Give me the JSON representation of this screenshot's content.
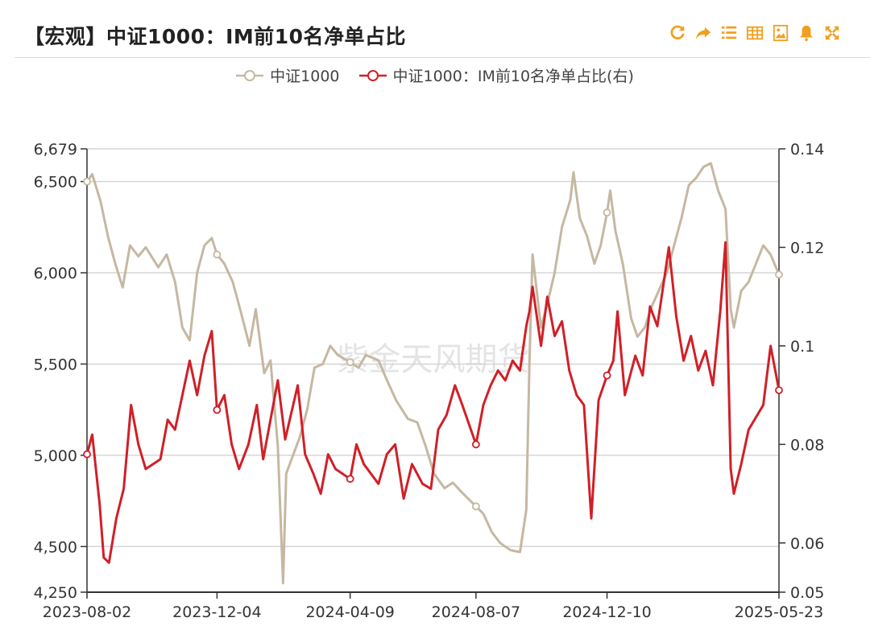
{
  "header": {
    "title": "【宏观】中证1000：IM前10名净单占比"
  },
  "toolbar": {
    "icons": [
      "refresh-icon",
      "share-icon",
      "list-icon",
      "table-icon",
      "image-icon",
      "bell-icon",
      "fullscreen-icon"
    ],
    "accent_color": "#f0a020"
  },
  "watermark": "紫金天风期货",
  "legend": {
    "items": [
      {
        "label": "中证1000",
        "color": "#c5b8a2"
      },
      {
        "label": "中证1000：IM前10名净单占比(右)",
        "color": "#d02028"
      }
    ]
  },
  "chart_data": {
    "type": "line",
    "title": "【宏观】中证1000：IM前10名净单占比",
    "x_ticks": [
      "2023-08-02",
      "2023-12-04",
      "2024-04-09",
      "2024-08-07",
      "2024-12-10",
      "2025-05-23"
    ],
    "left_axis": {
      "min": 4250,
      "max": 6679,
      "ticks": [
        4250,
        4500,
        5000,
        5500,
        6000,
        6500,
        6679
      ],
      "tick_labels": [
        "4,250",
        "4,500",
        "5,000",
        "5,500",
        "6,000",
        "6,500",
        "6,679"
      ]
    },
    "right_axis": {
      "min": 0.05,
      "max": 0.14,
      "ticks": [
        0.05,
        0.06,
        0.08,
        0.1,
        0.12,
        0.14
      ],
      "tick_labels": [
        "0.05",
        "0.06",
        "0.08",
        "0.1",
        "0.12",
        "0.14"
      ]
    },
    "grid": true,
    "series": [
      {
        "name": "中证1000",
        "axis": "left",
        "color": "#c5b8a2",
        "points": [
          [
            "2023-08-02",
            6500
          ],
          [
            "2023-08-07",
            6540
          ],
          [
            "2023-08-15",
            6390
          ],
          [
            "2023-08-22",
            6200
          ],
          [
            "2023-08-29",
            6050
          ],
          [
            "2023-09-05",
            5920
          ],
          [
            "2023-09-12",
            6150
          ],
          [
            "2023-09-20",
            6090
          ],
          [
            "2023-09-27",
            6140
          ],
          [
            "2023-10-09",
            6030
          ],
          [
            "2023-10-17",
            6100
          ],
          [
            "2023-10-25",
            5950
          ],
          [
            "2023-11-01",
            5700
          ],
          [
            "2023-11-08",
            5630
          ],
          [
            "2023-11-15",
            6000
          ],
          [
            "2023-11-22",
            6150
          ],
          [
            "2023-11-29",
            6190
          ],
          [
            "2023-12-04",
            6100
          ],
          [
            "2023-12-11",
            6050
          ],
          [
            "2023-12-19",
            5950
          ],
          [
            "2023-12-27",
            5780
          ],
          [
            "2024-01-04",
            5600
          ],
          [
            "2024-01-10",
            5800
          ],
          [
            "2024-01-18",
            5450
          ],
          [
            "2024-01-24",
            5520
          ],
          [
            "2024-01-31",
            5050
          ],
          [
            "2024-02-05",
            4300
          ],
          [
            "2024-02-08",
            4900
          ],
          [
            "2024-02-21",
            5100
          ],
          [
            "2024-02-28",
            5250
          ],
          [
            "2024-03-06",
            5480
          ],
          [
            "2024-03-14",
            5500
          ],
          [
            "2024-03-21",
            5600
          ],
          [
            "2024-03-28",
            5550
          ],
          [
            "2024-04-09",
            5510
          ],
          [
            "2024-04-17",
            5480
          ],
          [
            "2024-04-24",
            5550
          ],
          [
            "2024-05-06",
            5520
          ],
          [
            "2024-05-15",
            5400
          ],
          [
            "2024-05-23",
            5300
          ],
          [
            "2024-06-03",
            5200
          ],
          [
            "2024-06-12",
            5180
          ],
          [
            "2024-06-20",
            5050
          ],
          [
            "2024-06-28",
            4900
          ],
          [
            "2024-07-08",
            4820
          ],
          [
            "2024-07-16",
            4850
          ],
          [
            "2024-07-24",
            4800
          ],
          [
            "2024-08-07",
            4720
          ],
          [
            "2024-08-14",
            4680
          ],
          [
            "2024-08-22",
            4580
          ],
          [
            "2024-08-30",
            4520
          ],
          [
            "2024-09-09",
            4480
          ],
          [
            "2024-09-18",
            4470
          ],
          [
            "2024-09-24",
            4700
          ],
          [
            "2024-09-27",
            5500
          ],
          [
            "2024-09-30",
            6100
          ],
          [
            "2024-10-08",
            5700
          ],
          [
            "2024-10-14",
            5830
          ],
          [
            "2024-10-21",
            6000
          ],
          [
            "2024-10-28",
            6250
          ],
          [
            "2024-11-05",
            6400
          ],
          [
            "2024-11-08",
            6550
          ],
          [
            "2024-11-14",
            6300
          ],
          [
            "2024-11-21",
            6200
          ],
          [
            "2024-11-28",
            6050
          ],
          [
            "2024-12-04",
            6150
          ],
          [
            "2024-12-10",
            6330
          ],
          [
            "2024-12-13",
            6450
          ],
          [
            "2024-12-18",
            6230
          ],
          [
            "2024-12-25",
            6050
          ],
          [
            "2025-01-02",
            5750
          ],
          [
            "2025-01-08",
            5650
          ],
          [
            "2025-01-15",
            5700
          ],
          [
            "2025-01-22",
            5820
          ],
          [
            "2025-02-05",
            6000
          ],
          [
            "2025-02-12",
            6150
          ],
          [
            "2025-02-19",
            6300
          ],
          [
            "2025-02-26",
            6480
          ],
          [
            "2025-03-05",
            6520
          ],
          [
            "2025-03-12",
            6580
          ],
          [
            "2025-03-19",
            6600
          ],
          [
            "2025-03-26",
            6450
          ],
          [
            "2025-04-02",
            6350
          ],
          [
            "2025-04-07",
            5800
          ],
          [
            "2025-04-10",
            5700
          ],
          [
            "2025-04-17",
            5900
          ],
          [
            "2025-04-24",
            5950
          ],
          [
            "2025-05-08",
            6150
          ],
          [
            "2025-05-15",
            6100
          ],
          [
            "2025-05-23",
            5990
          ]
        ]
      },
      {
        "name": "中证1000：IM前10名净单占比(右)",
        "axis": "right",
        "color": "#d02028",
        "points": [
          [
            "2023-08-02",
            0.078
          ],
          [
            "2023-08-07",
            0.082
          ],
          [
            "2023-08-14",
            0.068
          ],
          [
            "2023-08-18",
            0.057
          ],
          [
            "2023-08-23",
            0.056
          ],
          [
            "2023-08-30",
            0.065
          ],
          [
            "2023-09-06",
            0.071
          ],
          [
            "2023-09-13",
            0.088
          ],
          [
            "2023-09-20",
            0.08
          ],
          [
            "2023-09-27",
            0.075
          ],
          [
            "2023-10-11",
            0.077
          ],
          [
            "2023-10-18",
            0.085
          ],
          [
            "2023-10-25",
            0.083
          ],
          [
            "2023-11-01",
            0.09
          ],
          [
            "2023-11-08",
            0.097
          ],
          [
            "2023-11-15",
            0.09
          ],
          [
            "2023-11-22",
            0.098
          ],
          [
            "2023-11-29",
            0.103
          ],
          [
            "2023-12-04",
            0.087
          ],
          [
            "2023-12-11",
            0.09
          ],
          [
            "2023-12-18",
            0.08
          ],
          [
            "2023-12-25",
            0.075
          ],
          [
            "2024-01-03",
            0.08
          ],
          [
            "2024-01-11",
            0.088
          ],
          [
            "2024-01-17",
            0.077
          ],
          [
            "2024-01-24",
            0.085
          ],
          [
            "2024-01-31",
            0.093
          ],
          [
            "2024-02-07",
            0.081
          ],
          [
            "2024-02-19",
            0.092
          ],
          [
            "2024-02-26",
            0.078
          ],
          [
            "2024-03-05",
            0.074
          ],
          [
            "2024-03-12",
            0.07
          ],
          [
            "2024-03-19",
            0.078
          ],
          [
            "2024-03-26",
            0.075
          ],
          [
            "2024-04-09",
            0.073
          ],
          [
            "2024-04-15",
            0.08
          ],
          [
            "2024-04-22",
            0.076
          ],
          [
            "2024-05-06",
            0.072
          ],
          [
            "2024-05-14",
            0.078
          ],
          [
            "2024-05-22",
            0.08
          ],
          [
            "2024-05-30",
            0.069
          ],
          [
            "2024-06-07",
            0.076
          ],
          [
            "2024-06-17",
            0.072
          ],
          [
            "2024-06-25",
            0.071
          ],
          [
            "2024-07-02",
            0.083
          ],
          [
            "2024-07-10",
            0.086
          ],
          [
            "2024-07-18",
            0.092
          ],
          [
            "2024-07-25",
            0.088
          ],
          [
            "2024-08-07",
            0.08
          ],
          [
            "2024-08-14",
            0.088
          ],
          [
            "2024-08-21",
            0.092
          ],
          [
            "2024-08-28",
            0.095
          ],
          [
            "2024-09-04",
            0.093
          ],
          [
            "2024-09-11",
            0.097
          ],
          [
            "2024-09-18",
            0.095
          ],
          [
            "2024-09-24",
            0.104
          ],
          [
            "2024-09-27",
            0.107
          ],
          [
            "2024-09-30",
            0.112
          ],
          [
            "2024-10-08",
            0.1
          ],
          [
            "2024-10-14",
            0.11
          ],
          [
            "2024-10-21",
            0.102
          ],
          [
            "2024-10-28",
            0.105
          ],
          [
            "2024-11-04",
            0.095
          ],
          [
            "2024-11-11",
            0.09
          ],
          [
            "2024-11-18",
            0.088
          ],
          [
            "2024-11-25",
            0.065
          ],
          [
            "2024-12-02",
            0.089
          ],
          [
            "2024-12-10",
            0.094
          ],
          [
            "2024-12-16",
            0.097
          ],
          [
            "2024-12-20",
            0.107
          ],
          [
            "2024-12-27",
            0.09
          ],
          [
            "2025-01-06",
            0.098
          ],
          [
            "2025-01-13",
            0.094
          ],
          [
            "2025-01-20",
            0.108
          ],
          [
            "2025-01-27",
            0.104
          ],
          [
            "2025-02-07",
            0.12
          ],
          [
            "2025-02-14",
            0.106
          ],
          [
            "2025-02-21",
            0.097
          ],
          [
            "2025-02-28",
            0.102
          ],
          [
            "2025-03-07",
            0.095
          ],
          [
            "2025-03-14",
            0.099
          ],
          [
            "2025-03-21",
            0.092
          ],
          [
            "2025-03-28",
            0.107
          ],
          [
            "2025-04-02",
            0.121
          ],
          [
            "2025-04-07",
            0.075
          ],
          [
            "2025-04-10",
            0.07
          ],
          [
            "2025-04-17",
            0.076
          ],
          [
            "2025-04-24",
            0.083
          ],
          [
            "2025-05-08",
            0.088
          ],
          [
            "2025-05-15",
            0.1
          ],
          [
            "2025-05-23",
            0.091
          ]
        ]
      }
    ]
  }
}
